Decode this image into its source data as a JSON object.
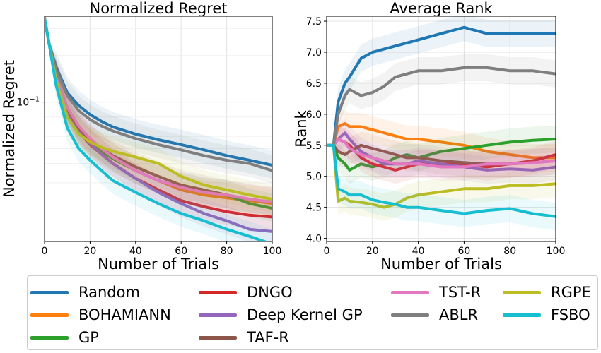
{
  "chart_data": [
    {
      "type": "line",
      "title": "Normalized Regret",
      "xlabel": "Number of Trials",
      "ylabel": "Normalized Regret",
      "yscale": "log",
      "xlim": [
        0,
        100
      ],
      "ylim": [
        0.0125,
        0.36
      ],
      "xticks": [
        0,
        20,
        40,
        60,
        80,
        100
      ],
      "yticks": [
        {
          "value": 0.1,
          "label": "10^-1"
        }
      ],
      "grid": true,
      "x": [
        0,
        2,
        5,
        10,
        15,
        20,
        25,
        30,
        40,
        50,
        60,
        70,
        80,
        90,
        100
      ],
      "series": [
        {
          "name": "Random",
          "values": [
            0.35,
            0.24,
            0.17,
            0.115,
            0.095,
            0.083,
            0.075,
            0.069,
            0.062,
            0.057,
            0.053,
            0.049,
            0.045,
            0.042,
            0.039
          ]
        },
        {
          "name": "BOHAMIANN",
          "values": [
            0.35,
            0.24,
            0.15,
            0.09,
            0.068,
            0.056,
            0.049,
            0.043,
            0.036,
            0.031,
            0.027,
            0.025,
            0.024,
            0.023,
            0.022
          ]
        },
        {
          "name": "GP",
          "values": [
            0.35,
            0.24,
            0.15,
            0.085,
            0.064,
            0.054,
            0.048,
            0.043,
            0.036,
            0.031,
            0.028,
            0.026,
            0.025,
            0.022,
            0.0205
          ]
        },
        {
          "name": "DNGO",
          "values": [
            0.35,
            0.24,
            0.15,
            0.085,
            0.064,
            0.053,
            0.046,
            0.04,
            0.032,
            0.027,
            0.023,
            0.021,
            0.0195,
            0.0185,
            0.018
          ]
        },
        {
          "name": "Deep Kernel GP",
          "values": [
            0.35,
            0.24,
            0.15,
            0.088,
            0.066,
            0.054,
            0.046,
            0.04,
            0.032,
            0.026,
            0.022,
            0.019,
            0.017,
            0.015,
            0.0145
          ]
        },
        {
          "name": "TAF-R",
          "values": [
            0.35,
            0.24,
            0.15,
            0.09,
            0.068,
            0.057,
            0.05,
            0.045,
            0.038,
            0.033,
            0.029,
            0.027,
            0.025,
            0.0235,
            0.0225
          ]
        },
        {
          "name": "TST-R",
          "values": [
            0.35,
            0.24,
            0.155,
            0.092,
            0.07,
            0.058,
            0.05,
            0.044,
            0.036,
            0.031,
            0.028,
            0.026,
            0.025,
            0.0235,
            0.0225
          ]
        },
        {
          "name": "ABLR",
          "values": [
            0.35,
            0.24,
            0.16,
            0.11,
            0.088,
            0.077,
            0.07,
            0.065,
            0.058,
            0.053,
            0.049,
            0.045,
            0.042,
            0.04,
            0.036
          ]
        },
        {
          "name": "RGPE",
          "values": [
            0.35,
            0.24,
            0.14,
            0.08,
            0.062,
            0.055,
            0.051,
            0.048,
            0.044,
            0.04,
            0.033,
            0.029,
            0.027,
            0.025,
            0.0235
          ]
        },
        {
          "name": "FSBO",
          "values": [
            0.35,
            0.24,
            0.13,
            0.068,
            0.05,
            0.042,
            0.036,
            0.031,
            0.026,
            0.022,
            0.019,
            0.017,
            0.015,
            0.0135,
            0.012
          ]
        }
      ]
    },
    {
      "type": "line",
      "title": "Average Rank",
      "xlabel": "Number of Trials",
      "ylabel": "Rank",
      "xlim": [
        0,
        100
      ],
      "ylim": [
        3.95,
        7.58
      ],
      "xticks": [
        0,
        20,
        40,
        60,
        80,
        100
      ],
      "yticks": [
        4.0,
        4.5,
        5.0,
        5.5,
        6.0,
        6.5,
        7.0,
        7.5
      ],
      "grid": true,
      "x": [
        0,
        3,
        5,
        8,
        10,
        15,
        20,
        25,
        30,
        35,
        40,
        50,
        60,
        70,
        80,
        90,
        100
      ],
      "series": [
        {
          "name": "Random",
          "values": [
            5.5,
            5.5,
            6.2,
            6.5,
            6.6,
            6.9,
            7.0,
            7.05,
            7.1,
            7.15,
            7.2,
            7.3,
            7.4,
            7.3,
            7.3,
            7.3,
            7.3
          ]
        },
        {
          "name": "BOHAMIANN",
          "values": [
            5.5,
            5.5,
            5.8,
            5.85,
            5.8,
            5.8,
            5.75,
            5.7,
            5.65,
            5.6,
            5.6,
            5.55,
            5.5,
            5.4,
            5.35,
            5.3,
            5.3
          ]
        },
        {
          "name": "GP",
          "values": [
            5.5,
            5.5,
            5.3,
            5.2,
            5.1,
            5.2,
            5.15,
            5.2,
            5.3,
            5.35,
            5.3,
            5.4,
            5.45,
            5.5,
            5.55,
            5.58,
            5.6
          ]
        },
        {
          "name": "DNGO",
          "values": [
            5.5,
            5.5,
            5.6,
            5.55,
            5.5,
            5.3,
            5.2,
            5.15,
            5.1,
            5.15,
            5.2,
            5.2,
            5.2,
            5.15,
            5.2,
            5.25,
            5.35
          ]
        },
        {
          "name": "Deep Kernel GP",
          "values": [
            5.5,
            5.5,
            5.6,
            5.7,
            5.6,
            5.4,
            5.3,
            5.2,
            5.2,
            5.2,
            5.25,
            5.2,
            5.15,
            5.1,
            5.12,
            5.1,
            5.15
          ]
        },
        {
          "name": "TAF-R",
          "values": [
            5.5,
            5.5,
            5.4,
            5.35,
            5.4,
            5.5,
            5.45,
            5.4,
            5.35,
            5.3,
            5.3,
            5.25,
            5.22,
            5.2,
            5.2,
            5.22,
            5.25
          ]
        },
        {
          "name": "TST-R",
          "values": [
            5.5,
            5.5,
            5.6,
            5.55,
            5.45,
            5.35,
            5.3,
            5.25,
            5.2,
            5.2,
            5.2,
            5.15,
            5.15,
            5.2,
            5.2,
            5.22,
            5.25
          ]
        },
        {
          "name": "ABLR",
          "values": [
            5.5,
            5.5,
            6.0,
            6.3,
            6.4,
            6.3,
            6.35,
            6.45,
            6.6,
            6.65,
            6.7,
            6.7,
            6.75,
            6.75,
            6.7,
            6.7,
            6.65
          ]
        },
        {
          "name": "RGPE",
          "values": [
            5.5,
            5.5,
            4.6,
            4.65,
            4.6,
            4.58,
            4.55,
            4.5,
            4.55,
            4.65,
            4.7,
            4.75,
            4.8,
            4.8,
            4.85,
            4.85,
            4.88
          ]
        },
        {
          "name": "FSBO",
          "values": [
            5.5,
            5.5,
            4.8,
            4.75,
            4.7,
            4.7,
            4.62,
            4.58,
            4.55,
            4.5,
            4.5,
            4.45,
            4.4,
            4.45,
            4.48,
            4.4,
            4.35
          ]
        }
      ]
    }
  ],
  "colors": {
    "Random": "#1f77b4",
    "BOHAMIANN": "#ff7f0e",
    "GP": "#2ca02c",
    "DNGO": "#d62728",
    "Deep Kernel GP": "#9467bd",
    "TAF-R": "#8c564b",
    "TST-R": "#e377c2",
    "ABLR": "#7f7f7f",
    "RGPE": "#bcbd22",
    "FSBO": "#17becf"
  },
  "legend": {
    "placement": "bottom",
    "entries": [
      "Random",
      "BOHAMIANN",
      "GP",
      "DNGO",
      "Deep Kernel GP",
      "TAF-R",
      "TST-R",
      "ABLR",
      "RGPE",
      "FSBO"
    ]
  }
}
